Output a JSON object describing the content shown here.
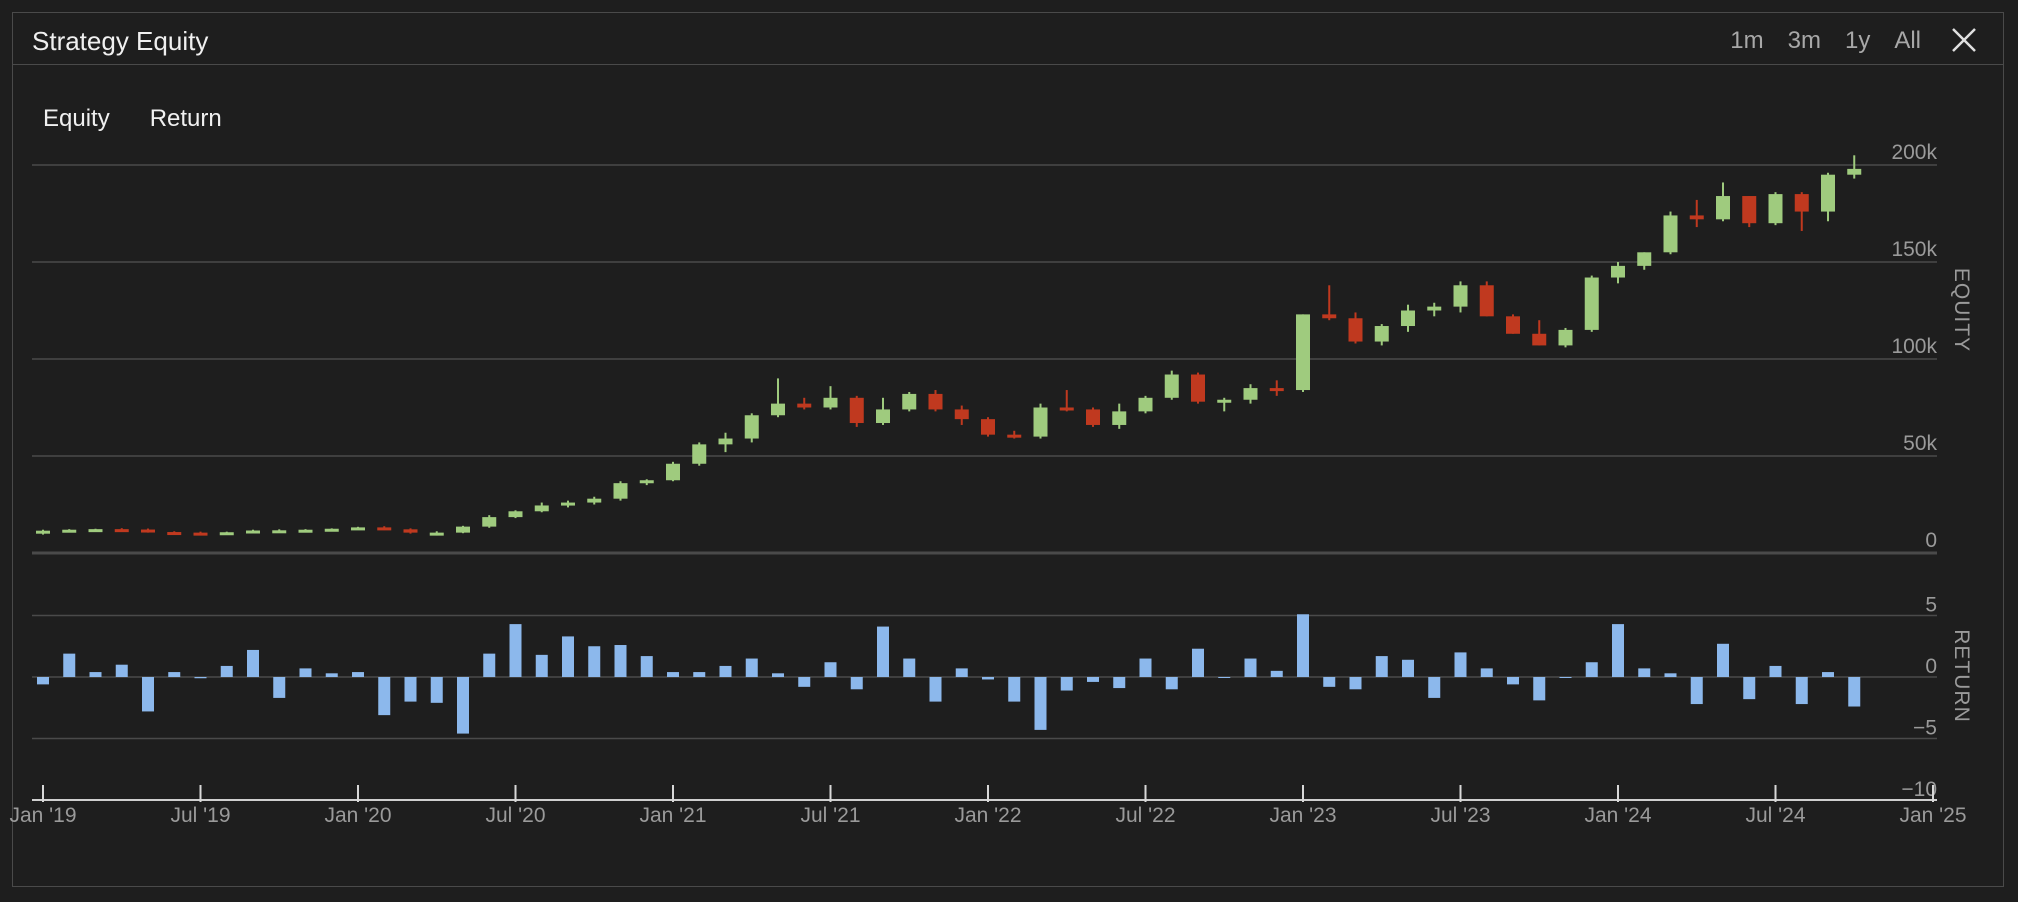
{
  "header": {
    "title": "Strategy Equity",
    "ranges": [
      "1m",
      "3m",
      "1y",
      "All"
    ]
  },
  "tabs": [
    "Equity",
    "Return"
  ],
  "colors": {
    "up": "#9fcb7e",
    "down": "#c0391f",
    "bar": "#8cb8ec",
    "grid": "#4a4a4a",
    "axis_text": "#9a9a9a"
  },
  "chart_data": [
    {
      "type": "candlestick",
      "ylabel": "EQUITY",
      "ylim": [
        0,
        200000
      ],
      "yticks": [
        0,
        50000,
        100000,
        150000,
        200000
      ],
      "ytick_labels": [
        "0",
        "50k",
        "100k",
        "150k",
        "200k"
      ],
      "candles": [
        [
          "2019-01",
          10500,
          12000,
          9500,
          11500
        ],
        [
          "2019-02",
          11500,
          12300,
          11000,
          12000
        ],
        [
          "2019-03",
          12000,
          12500,
          11500,
          12300
        ],
        [
          "2019-04",
          12300,
          12800,
          11700,
          12100
        ],
        [
          "2019-05",
          12100,
          12600,
          10500,
          10800
        ],
        [
          "2019-06",
          10800,
          11200,
          10000,
          10500
        ],
        [
          "2019-07",
          10500,
          11000,
          9800,
          10000
        ],
        [
          "2019-08",
          9800,
          11000,
          9500,
          10700
        ],
        [
          "2019-09",
          10700,
          12000,
          10300,
          11600
        ],
        [
          "2019-10",
          11600,
          12200,
          11300,
          11700
        ],
        [
          "2019-11",
          11700,
          12300,
          11200,
          12000
        ],
        [
          "2019-12",
          12000,
          12700,
          11600,
          12500
        ],
        [
          "2020-01",
          12500,
          13500,
          12000,
          13200
        ],
        [
          "2020-02",
          13200,
          13800,
          11800,
          12200
        ],
        [
          "2020-03",
          12200,
          12700,
          10000,
          10500
        ],
        [
          "2020-04",
          10000,
          11200,
          9000,
          10500
        ],
        [
          "2020-05",
          10500,
          14000,
          10200,
          13600
        ],
        [
          "2020-06",
          13600,
          19500,
          13000,
          18500
        ],
        [
          "2020-07",
          18500,
          22000,
          18000,
          21500
        ],
        [
          "2020-08",
          21500,
          26000,
          21000,
          24500
        ],
        [
          "2020-09",
          24500,
          27000,
          23500,
          26000
        ],
        [
          "2020-10",
          26000,
          29000,
          25000,
          28000
        ],
        [
          "2020-11",
          28000,
          37000,
          27000,
          36000
        ],
        [
          "2020-12",
          36000,
          38000,
          35000,
          37500
        ],
        [
          "2021-01",
          37500,
          47000,
          37000,
          46000
        ],
        [
          "2021-02",
          46000,
          57000,
          45000,
          56000
        ],
        [
          "2021-03",
          56000,
          62000,
          52000,
          59000
        ],
        [
          "2021-04",
          59000,
          72000,
          57000,
          71000
        ],
        [
          "2021-05",
          71000,
          90000,
          70000,
          77000
        ],
        [
          "2021-06",
          77000,
          80000,
          74000,
          75000
        ],
        [
          "2021-07",
          75000,
          86000,
          74000,
          80000
        ],
        [
          "2021-08",
          80000,
          81000,
          65000,
          67000
        ],
        [
          "2021-09",
          67000,
          80000,
          66000,
          74000
        ],
        [
          "2021-10",
          74000,
          83000,
          73000,
          82000
        ],
        [
          "2021-11",
          82000,
          84000,
          73000,
          74000
        ],
        [
          "2021-12",
          74000,
          76000,
          66000,
          69000
        ],
        [
          "2022-01",
          69000,
          70000,
          60000,
          61000
        ],
        [
          "2022-02",
          61000,
          63000,
          59000,
          60000
        ],
        [
          "2022-03",
          60000,
          77000,
          59000,
          75000
        ],
        [
          "2022-04",
          75000,
          84000,
          73000,
          74000
        ],
        [
          "2022-05",
          74000,
          75000,
          65000,
          66000
        ],
        [
          "2022-06",
          66000,
          77000,
          64000,
          73000
        ],
        [
          "2022-07",
          73000,
          81000,
          72000,
          80000
        ],
        [
          "2022-08",
          80000,
          94000,
          79000,
          92000
        ],
        [
          "2022-09",
          92000,
          93000,
          77000,
          78000
        ],
        [
          "2022-10",
          78000,
          80000,
          73000,
          79000
        ],
        [
          "2022-11",
          79000,
          87000,
          77000,
          85000
        ],
        [
          "2022-12",
          85000,
          89000,
          81000,
          84000
        ],
        [
          "2023-01",
          84000,
          123000,
          83000,
          123000
        ],
        [
          "2023-02",
          123000,
          138000,
          120000,
          121000
        ],
        [
          "2023-03",
          121000,
          124000,
          108000,
          109000
        ],
        [
          "2023-04",
          109000,
          118000,
          107000,
          117000
        ],
        [
          "2023-05",
          117000,
          128000,
          114000,
          125000
        ],
        [
          "2023-06",
          125000,
          129000,
          122000,
          127000
        ],
        [
          "2023-07",
          127000,
          140000,
          124000,
          138000
        ],
        [
          "2023-08",
          138000,
          140000,
          122000,
          122000
        ],
        [
          "2023-09",
          122000,
          123000,
          113000,
          113000
        ],
        [
          "2023-10",
          113000,
          120000,
          107000,
          107000
        ],
        [
          "2023-11",
          107000,
          116000,
          106000,
          115000
        ],
        [
          "2023-12",
          115000,
          143000,
          114000,
          142000
        ],
        [
          "2024-01",
          142000,
          150000,
          139000,
          148000
        ],
        [
          "2024-02",
          148000,
          155000,
          146000,
          155000
        ],
        [
          "2024-03",
          155000,
          176000,
          154000,
          174000
        ],
        [
          "2024-04",
          174000,
          182000,
          168000,
          172000
        ],
        [
          "2024-05",
          172000,
          191000,
          171000,
          184000
        ],
        [
          "2024-06",
          184000,
          184000,
          168000,
          170000
        ],
        [
          "2024-07",
          170000,
          186000,
          169000,
          185000
        ],
        [
          "2024-08",
          185000,
          186000,
          166000,
          176000
        ],
        [
          "2024-09",
          176000,
          196000,
          171000,
          195000
        ],
        [
          "2024-10",
          195000,
          205000,
          193000,
          198000
        ]
      ]
    },
    {
      "type": "bar",
      "ylabel": "RETURN",
      "ylim": [
        -10,
        5
      ],
      "yticks": [
        -10,
        -5,
        0,
        5
      ],
      "ytick_labels": [
        "−10",
        "−5",
        "0",
        "5"
      ],
      "x": [
        "2019-01",
        "2019-02",
        "2019-03",
        "2019-04",
        "2019-05",
        "2019-06",
        "2019-07",
        "2019-08",
        "2019-09",
        "2019-10",
        "2019-11",
        "2019-12",
        "2020-01",
        "2020-02",
        "2020-03",
        "2020-04",
        "2020-05",
        "2020-06",
        "2020-07",
        "2020-08",
        "2020-09",
        "2020-10",
        "2020-11",
        "2020-12",
        "2021-01",
        "2021-02",
        "2021-03",
        "2021-04",
        "2021-05",
        "2021-06",
        "2021-07",
        "2021-08",
        "2021-09",
        "2021-10",
        "2021-11",
        "2021-12",
        "2022-01",
        "2022-02",
        "2022-03",
        "2022-04",
        "2022-05",
        "2022-06",
        "2022-07",
        "2022-08",
        "2022-09",
        "2022-10",
        "2022-11",
        "2022-12",
        "2023-01",
        "2023-02",
        "2023-03",
        "2023-04",
        "2023-05",
        "2023-06",
        "2023-07",
        "2023-08",
        "2023-09",
        "2023-10",
        "2023-11",
        "2023-12",
        "2024-01",
        "2024-02",
        "2024-03",
        "2024-04",
        "2024-05",
        "2024-06",
        "2024-07",
        "2024-08",
        "2024-09",
        "2024-10"
      ],
      "values": [
        -0.6,
        1.9,
        0.4,
        1.0,
        -2.8,
        0.4,
        -0.1,
        0.9,
        2.2,
        -1.7,
        0.7,
        0.3,
        0.4,
        -3.1,
        -2.0,
        -2.1,
        -4.6,
        1.9,
        4.3,
        1.8,
        3.3,
        2.5,
        2.6,
        1.7,
        0.4,
        0.4,
        0.9,
        1.5,
        0.3,
        -0.8,
        1.2,
        -1.0,
        4.1,
        1.5,
        -2.0,
        0.7,
        -0.2,
        -2.0,
        -4.3,
        -1.1,
        -0.4,
        -0.9,
        1.5,
        -1.0,
        2.3,
        0.0,
        1.5,
        0.5,
        5.1,
        -0.8,
        -1.0,
        1.7,
        1.4,
        -1.7,
        2.0,
        0.7,
        -0.6,
        -1.9,
        0.0,
        1.2,
        4.3,
        0.7,
        0.3,
        -2.2,
        2.7,
        -1.8,
        0.9,
        -2.2,
        0.4,
        -2.4
      ]
    }
  ],
  "x_axis": {
    "ticks": [
      "2019-01",
      "2019-07",
      "2020-01",
      "2020-07",
      "2021-01",
      "2021-07",
      "2022-01",
      "2022-07",
      "2023-01",
      "2023-07",
      "2024-01",
      "2024-07",
      "2025-01"
    ],
    "tick_labels": [
      "Jan '19",
      "Jul '19",
      "Jan '20",
      "Jul '20",
      "Jan '21",
      "Jul '21",
      "Jan '22",
      "Jul '22",
      "Jan '23",
      "Jul '23",
      "Jan '24",
      "Jul '24",
      "Jan '25"
    ]
  }
}
